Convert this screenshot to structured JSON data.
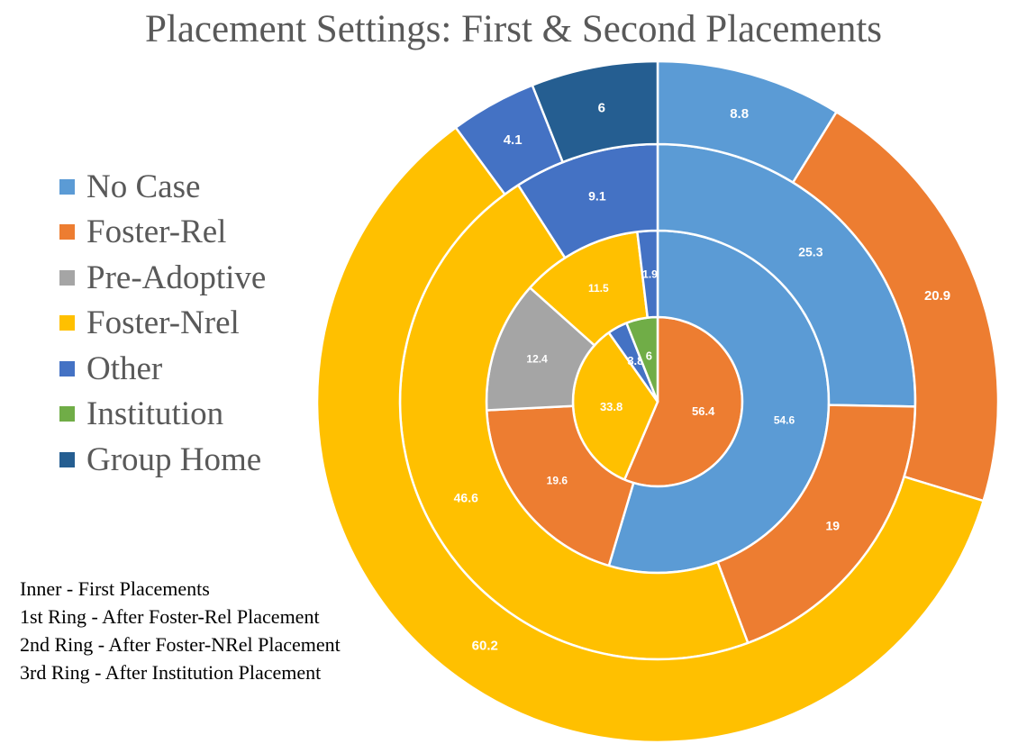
{
  "title": "Placement Settings: First & Second Placements",
  "colors": {
    "No Case": "#5B9BD5",
    "Foster-Rel": "#ED7D31",
    "Pre-Adoptive": "#A5A5A5",
    "Foster-Nrel": "#FFC000",
    "Other": "#4472C4",
    "Institution": "#70AD47",
    "Group Home": "#255E91"
  },
  "legend": [
    {
      "label": "No Case",
      "color": "#5B9BD5"
    },
    {
      "label": "Foster-Rel",
      "color": "#ED7D31"
    },
    {
      "label": "Pre-Adoptive",
      "color": "#A5A5A5"
    },
    {
      "label": "Foster-Nrel",
      "color": "#FFC000"
    },
    {
      "label": "Other",
      "color": "#4472C4"
    },
    {
      "label": "Institution",
      "color": "#70AD47"
    },
    {
      "label": "Group Home",
      "color": "#255E91"
    }
  ],
  "notes": [
    "Inner - First Placements",
    "1st Ring - After Foster-Rel Placement",
    "2nd Ring - After Foster-NRel Placement",
    "3rd Ring - After Institution Placement"
  ],
  "chart_data": {
    "type": "donut",
    "title": "Placement Settings: First & Second Placements",
    "legend_position": "left",
    "rings": [
      {
        "name": "Inner - First Placements",
        "segments": [
          {
            "category": "Foster-Rel",
            "value": 56.4,
            "label": "56.4"
          },
          {
            "category": "Foster-Nrel",
            "value": 33.8,
            "label": "33.8"
          },
          {
            "category": "Other",
            "value": 3.8,
            "label": "3.8"
          },
          {
            "category": "Institution",
            "value": 6,
            "label": "6"
          }
        ]
      },
      {
        "name": "1st Ring - After Foster-Rel Placement",
        "segments": [
          {
            "category": "No Case",
            "value": 54.6,
            "label": "54.6"
          },
          {
            "category": "Foster-Rel",
            "value": 19.6,
            "label": "19.6"
          },
          {
            "category": "Pre-Adoptive",
            "value": 12.4,
            "label": "12.4"
          },
          {
            "category": "Foster-Nrel",
            "value": 11.5,
            "label": "11.5"
          },
          {
            "category": "Other",
            "value": 1.9,
            "label": "1.9"
          }
        ]
      },
      {
        "name": "2nd Ring - After Foster-NRel Placement",
        "segments": [
          {
            "category": "No Case",
            "value": 25.3,
            "label": "25.3"
          },
          {
            "category": "Foster-Rel",
            "value": 19,
            "label": "19"
          },
          {
            "category": "Foster-Nrel",
            "value": 46.6,
            "label": "46.6"
          },
          {
            "category": "Other",
            "value": 9.1,
            "label": "9.1"
          }
        ]
      },
      {
        "name": "3rd Ring - After Institution Placement",
        "segments": [
          {
            "category": "No Case",
            "value": 8.8,
            "label": "8.8"
          },
          {
            "category": "Foster-Rel",
            "value": 20.9,
            "label": "20.9"
          },
          {
            "category": "Foster-Nrel",
            "value": 60.2,
            "label": "60.2"
          },
          {
            "category": "Other",
            "value": 4.1,
            "label": "4.1"
          },
          {
            "category": "Group Home",
            "value": 6,
            "label": "6"
          }
        ]
      }
    ]
  }
}
